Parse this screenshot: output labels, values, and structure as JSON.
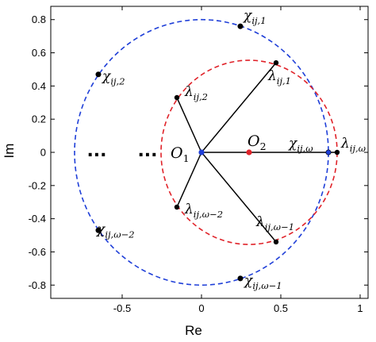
{
  "chart_data": {
    "type": "scatter",
    "xlabel": "Re",
    "ylabel": "Im",
    "xlim": [
      -0.95,
      1.05
    ],
    "ylim": [
      -0.88,
      0.88
    ],
    "xticks": [
      -0.5,
      0,
      0.5,
      1
    ],
    "xtick_labels": [
      "-0.5",
      "0",
      "0.5",
      "1"
    ],
    "yticks": [
      -0.8,
      -0.6,
      -0.4,
      -0.2,
      0,
      0.2,
      0.4,
      0.6,
      0.8
    ],
    "ytick_labels": [
      "-0.8",
      "-0.6",
      "-0.4",
      "-0.2",
      "0",
      "0.2",
      "0.4",
      "0.6",
      "0.8"
    ],
    "grid": false,
    "colors": {
      "blue": "#1f3fd8",
      "red": "#e0232a",
      "black": "#000000"
    },
    "circles": [
      {
        "id": "outer",
        "center": [
          0,
          0
        ],
        "radius": 0.8,
        "color": "#1f3fd8",
        "style": "dashed"
      },
      {
        "id": "inner",
        "center": [
          0.3,
          0
        ],
        "radius": 0.555,
        "color": "#e0232a",
        "style": "dashed"
      }
    ],
    "centers": [
      {
        "id": "O1",
        "base": "O",
        "sub": "1",
        "x": 0,
        "y": 0,
        "color": "#1f3fd8"
      },
      {
        "id": "O2",
        "base": "O",
        "sub": "2",
        "x": 0.3,
        "y": 0,
        "color": "#e0232a"
      }
    ],
    "lambda_points": [
      {
        "id": "lambda_ij_1",
        "base": "λ",
        "sub": "ij,1",
        "x": 0.47,
        "y": 0.54
      },
      {
        "id": "lambda_ij_2",
        "base": "λ",
        "sub": "ij,2",
        "x": -0.155,
        "y": 0.33
      },
      {
        "id": "lambda_ij_omega_minus_2",
        "base": "λ",
        "sub": "ij,ω−2",
        "x": -0.155,
        "y": -0.33
      },
      {
        "id": "lambda_ij_omega_minus_1",
        "base": "λ",
        "sub": "ij,ω−1",
        "x": 0.47,
        "y": -0.54
      },
      {
        "id": "lambda_ij_omega",
        "base": "λ",
        "sub": "ij,ω",
        "x": 0.855,
        "y": 0
      }
    ],
    "chi_points": [
      {
        "id": "chi_ij_1",
        "base": "χ",
        "sub": "ij,1",
        "x": 0.245,
        "y": 0.76
      },
      {
        "id": "chi_ij_2",
        "base": "χ",
        "sub": "ij,2",
        "x": -0.65,
        "y": 0.47
      },
      {
        "id": "chi_ij_omega_minus_2",
        "base": "χ",
        "sub": "ij,ω−2",
        "x": -0.65,
        "y": -0.47
      },
      {
        "id": "chi_ij_omega_minus_1",
        "base": "χ",
        "sub": "ij,ω−1",
        "x": 0.245,
        "y": -0.76
      },
      {
        "id": "chi_ij_omega",
        "base": "χ",
        "sub": "ij,ω",
        "x": 0.8,
        "y": 0
      }
    ],
    "ellipsis": [
      {
        "id": "ellipsis-left",
        "text": "...",
        "x": -0.66,
        "y": 0
      },
      {
        "id": "ellipsis-right",
        "text": "...",
        "x": -0.34,
        "y": 0
      }
    ]
  }
}
